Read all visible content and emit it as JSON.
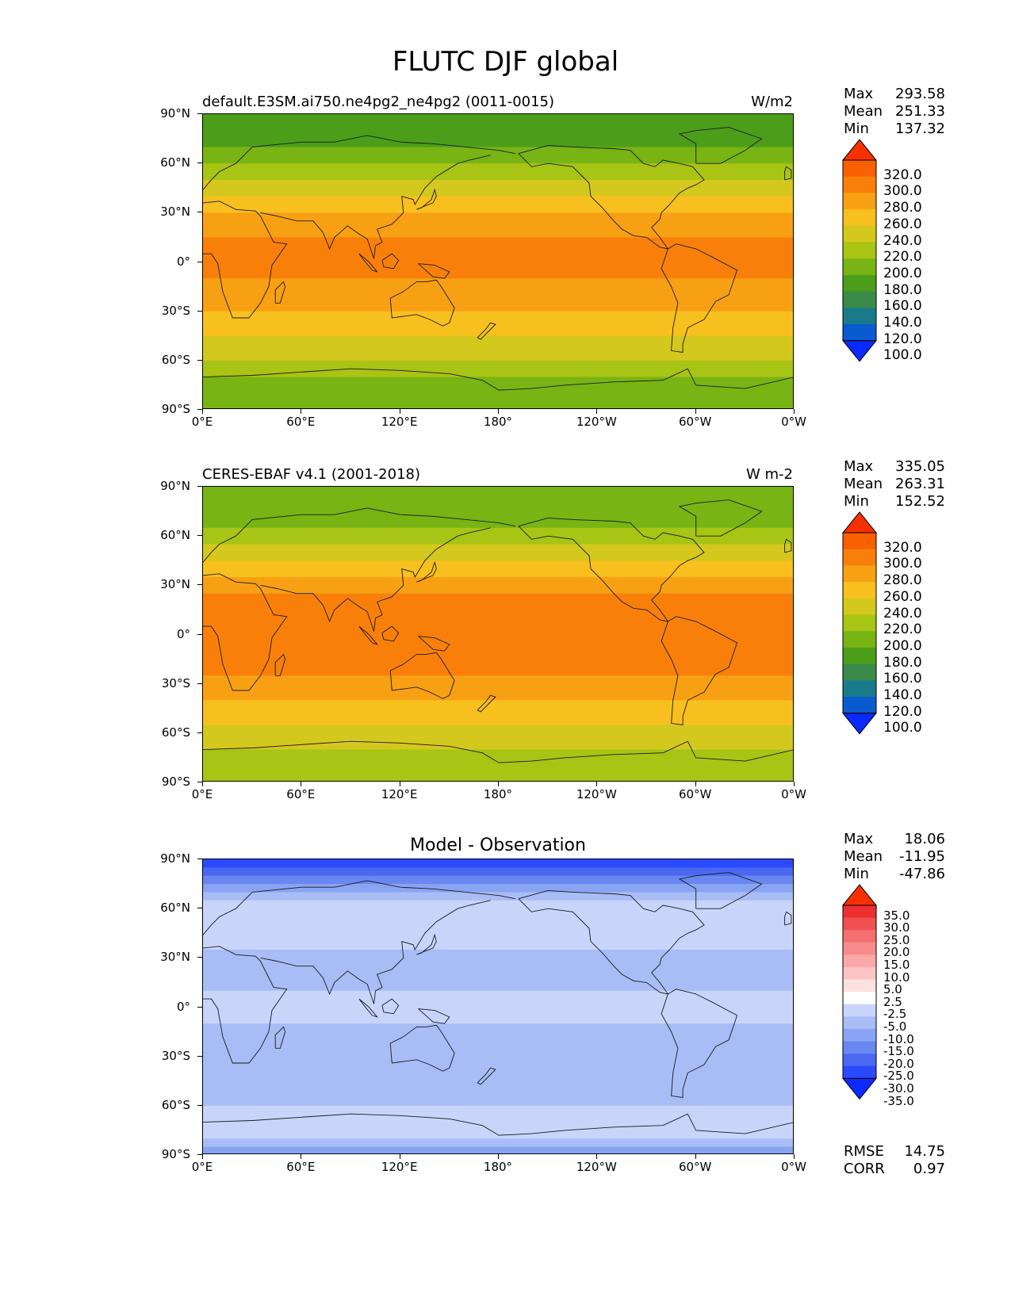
{
  "figure": {
    "title": "FLUTC DJF global"
  },
  "axes": {
    "lat_labels": [
      "90°N",
      "60°N",
      "30°N",
      "0°",
      "30°S",
      "60°S",
      "90°S"
    ],
    "lon_labels": [
      "0°E",
      "60°E",
      "120°E",
      "180°",
      "120°W",
      "60°W",
      "0°W"
    ]
  },
  "panels": [
    {
      "title_left": "default.E3SM.ai750.ne4pg2_ne4pg2 (0011-0015)",
      "title_right": "W/m2",
      "title_center": "",
      "stats": {
        "max_label": "Max",
        "max": "293.58",
        "mean_label": "Mean",
        "mean": "251.33",
        "min_label": "Min",
        "min": "137.32"
      },
      "colorbar_ticks": [
        "320.0",
        "300.0",
        "280.0",
        "260.0",
        "240.0",
        "220.0",
        "200.0",
        "180.0",
        "160.0",
        "140.0",
        "120.0",
        "100.0"
      ]
    },
    {
      "title_left": "CERES-EBAF v4.1 (2001-2018)",
      "title_right": "W m-2",
      "title_center": "",
      "stats": {
        "max_label": "Max",
        "max": "335.05",
        "mean_label": "Mean",
        "mean": "263.31",
        "min_label": "Min",
        "min": "152.52"
      },
      "colorbar_ticks": [
        "320.0",
        "300.0",
        "280.0",
        "260.0",
        "240.0",
        "220.0",
        "200.0",
        "180.0",
        "160.0",
        "140.0",
        "120.0",
        "100.0"
      ]
    },
    {
      "title_left": "",
      "title_right": "",
      "title_center": "Model - Observation",
      "stats": {
        "max_label": "Max",
        "max": "18.06",
        "mean_label": "Mean",
        "mean": "-11.95",
        "min_label": "Min",
        "min": "-47.86"
      },
      "colorbar_ticks": [
        "35.0",
        "30.0",
        "25.0",
        "20.0",
        "15.0",
        "10.0",
        "5.0",
        "2.5",
        "-2.5",
        "-5.0",
        "-10.0",
        "-15.0",
        "-20.0",
        "-25.0",
        "-30.0",
        "-35.0"
      ],
      "extra": {
        "rmse_label": "RMSE",
        "rmse": "14.75",
        "corr_label": "CORR",
        "corr": "0.97"
      }
    }
  ],
  "colors": {
    "abs_cmap": [
      "#0a2aff",
      "#0a5ad2",
      "#1a7a8a",
      "#3a8a4a",
      "#4c9e1a",
      "#78b414",
      "#a8c414",
      "#d4c81e",
      "#f8c01e",
      "#f8a014",
      "#f8800a",
      "#f86000",
      "#f83000"
    ],
    "diff_cmap": [
      "#0a2aff",
      "#2a4aff",
      "#4a68f0",
      "#6a86f0",
      "#8aa4f4",
      "#a8bcf6",
      "#c8d4fa",
      "#ffffff",
      "#fde0e0",
      "#fcc4c4",
      "#fba8a8",
      "#f88c8c",
      "#f47070",
      "#f05050",
      "#ec3030",
      "#f83000"
    ]
  },
  "chart_data": [
    {
      "type": "heatmap",
      "title": "default.E3SM.ai750.ne4pg2_ne4pg2 (0011-0015)",
      "units": "W/m2",
      "x_ticks": [
        "0°E",
        "60°E",
        "120°E",
        "180°",
        "120°W",
        "60°W",
        "0°W"
      ],
      "y_ticks": [
        "90°N",
        "60°N",
        "30°N",
        "0°",
        "30°S",
        "60°S",
        "90°S"
      ],
      "zonal_profile": {
        "lat": [
          90,
          75,
          60,
          45,
          30,
          15,
          0,
          -15,
          -30,
          -45,
          -60,
          -75,
          -90
        ],
        "value": [
          160,
          170,
          200,
          230,
          265,
          280,
          285,
          275,
          262,
          240,
          220,
          195,
          185
        ]
      },
      "stats": {
        "max": 293.58,
        "mean": 251.33,
        "min": 137.32
      },
      "levels": [
        100,
        120,
        140,
        160,
        180,
        200,
        220,
        240,
        260,
        280,
        300,
        320
      ]
    },
    {
      "type": "heatmap",
      "title": "CERES-EBAF v4.1 (2001-2018)",
      "units": "W m-2",
      "x_ticks": [
        "0°E",
        "60°E",
        "120°E",
        "180°",
        "120°W",
        "60°W",
        "0°W"
      ],
      "y_ticks": [
        "90°N",
        "60°N",
        "30°N",
        "0°",
        "30°S",
        "60°S",
        "90°S"
      ],
      "zonal_profile": {
        "lat": [
          90,
          75,
          60,
          45,
          30,
          15,
          0,
          -15,
          -30,
          -45,
          -60,
          -75,
          -90
        ],
        "value": [
          195,
          190,
          205,
          235,
          270,
          290,
          288,
          285,
          275,
          250,
          230,
          215,
          205
        ]
      },
      "stats": {
        "max": 335.05,
        "mean": 263.31,
        "min": 152.52
      },
      "levels": [
        100,
        120,
        140,
        160,
        180,
        200,
        220,
        240,
        260,
        280,
        300,
        320
      ]
    },
    {
      "type": "heatmap",
      "title": "Model - Observation",
      "x_ticks": [
        "0°E",
        "60°E",
        "120°E",
        "180°",
        "120°W",
        "60°W",
        "0°W"
      ],
      "y_ticks": [
        "90°N",
        "60°N",
        "30°N",
        "0°",
        "30°S",
        "60°S",
        "90°S"
      ],
      "zonal_profile": {
        "lat": [
          90,
          75,
          60,
          45,
          30,
          15,
          0,
          -15,
          -30,
          -45,
          -60,
          -75,
          -90
        ],
        "value": [
          -35,
          -20,
          -8,
          -8,
          -12,
          -12,
          -5,
          -12,
          -14,
          -12,
          -10,
          -5,
          -20
        ]
      },
      "stats": {
        "max": 18.06,
        "mean": -11.95,
        "min": -47.86,
        "rmse": 14.75,
        "corr": 0.97
      },
      "levels": [
        -35,
        -30,
        -25,
        -20,
        -15,
        -10,
        -5,
        -2.5,
        2.5,
        5,
        10,
        15,
        20,
        25,
        30,
        35
      ]
    }
  ]
}
